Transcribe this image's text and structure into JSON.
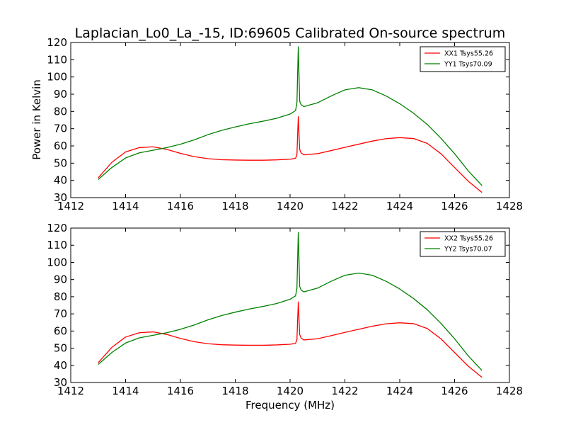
{
  "figure": {
    "title": "Laplacian_Lo0_La_-15, ID:69605 Calibrated On-source spectrum",
    "xlabel": "Frequency (MHz)",
    "ylabel": "Power in Kelvin"
  },
  "chart_data": [
    {
      "type": "line",
      "title": "Laplacian_Lo0_La_-15, ID:69605 Calibrated On-source spectrum",
      "xlabel": "",
      "ylabel": "Power in Kelvin",
      "xlim": [
        1412,
        1428
      ],
      "ylim": [
        30,
        120
      ],
      "xticks": [
        1412,
        1414,
        1416,
        1418,
        1420,
        1422,
        1424,
        1426,
        1428
      ],
      "yticks": [
        30,
        40,
        50,
        60,
        70,
        80,
        90,
        100,
        110,
        120
      ],
      "grid": false,
      "legend": "top-right",
      "series": [
        {
          "name": "XX1 Tsys55.26",
          "color": "#ff0000",
          "x": [
            1413.0,
            1413.5,
            1414.0,
            1414.5,
            1415.0,
            1415.5,
            1416.0,
            1416.5,
            1417.0,
            1417.5,
            1418.0,
            1418.5,
            1419.0,
            1419.5,
            1420.0,
            1420.2,
            1420.25,
            1420.3,
            1420.35,
            1420.4,
            1420.5,
            1421.0,
            1421.5,
            1422.0,
            1422.5,
            1423.0,
            1423.5,
            1424.0,
            1424.5,
            1425.0,
            1425.5,
            1426.0,
            1426.5,
            1427.0
          ],
          "y": [
            41.5,
            50.5,
            56.5,
            59.0,
            59.5,
            58.0,
            55.7,
            53.8,
            52.6,
            52.0,
            51.8,
            51.7,
            51.7,
            51.9,
            52.3,
            52.8,
            55.0,
            77.0,
            58.0,
            56.0,
            54.8,
            55.5,
            57.3,
            59.2,
            61.0,
            62.8,
            64.2,
            64.8,
            64.3,
            61.5,
            55.5,
            47.5,
            39.5,
            33.0
          ]
        },
        {
          "name": "YY1 Tsys70.09",
          "color": "#008000",
          "x": [
            1413.0,
            1413.5,
            1414.0,
            1414.5,
            1415.0,
            1415.5,
            1416.0,
            1416.5,
            1417.0,
            1417.5,
            1418.0,
            1418.5,
            1419.0,
            1419.5,
            1420.0,
            1420.2,
            1420.25,
            1420.3,
            1420.35,
            1420.4,
            1420.5,
            1421.0,
            1421.5,
            1422.0,
            1422.5,
            1423.0,
            1423.5,
            1424.0,
            1424.5,
            1425.0,
            1425.5,
            1426.0,
            1426.5,
            1427.0
          ],
          "y": [
            40.5,
            47.5,
            53.0,
            56.0,
            57.5,
            59.0,
            61.0,
            63.5,
            66.5,
            69.0,
            71.0,
            72.8,
            74.3,
            76.0,
            78.5,
            80.5,
            85.0,
            117.5,
            86.0,
            84.0,
            82.8,
            85.0,
            89.0,
            92.5,
            93.8,
            92.5,
            89.0,
            84.5,
            79.0,
            72.5,
            64.5,
            55.5,
            45.5,
            37.0
          ]
        }
      ]
    },
    {
      "type": "line",
      "title": "",
      "xlabel": "Frequency (MHz)",
      "ylabel": "",
      "xlim": [
        1412,
        1428
      ],
      "ylim": [
        30,
        120
      ],
      "xticks": [
        1412,
        1414,
        1416,
        1418,
        1420,
        1422,
        1424,
        1426,
        1428
      ],
      "yticks": [
        30,
        40,
        50,
        60,
        70,
        80,
        90,
        100,
        110,
        120
      ],
      "grid": false,
      "legend": "top-right",
      "series": [
        {
          "name": "XX2 Tsys55.26",
          "color": "#ff0000",
          "x": [
            1413.0,
            1413.5,
            1414.0,
            1414.5,
            1415.0,
            1415.5,
            1416.0,
            1416.5,
            1417.0,
            1417.5,
            1418.0,
            1418.5,
            1419.0,
            1419.5,
            1420.0,
            1420.2,
            1420.25,
            1420.3,
            1420.35,
            1420.4,
            1420.5,
            1421.0,
            1421.5,
            1422.0,
            1422.5,
            1423.0,
            1423.5,
            1424.0,
            1424.5,
            1425.0,
            1425.5,
            1426.0,
            1426.5,
            1427.0
          ],
          "y": [
            41.5,
            50.5,
            56.5,
            59.0,
            59.5,
            58.0,
            55.7,
            53.8,
            52.6,
            52.0,
            51.8,
            51.7,
            51.7,
            51.9,
            52.3,
            52.8,
            55.0,
            77.0,
            58.0,
            56.0,
            54.8,
            55.5,
            57.3,
            59.2,
            61.0,
            62.8,
            64.2,
            64.8,
            64.3,
            61.5,
            55.5,
            47.5,
            39.5,
            33.0
          ]
        },
        {
          "name": "YY2 Tsys70.07",
          "color": "#008000",
          "x": [
            1413.0,
            1413.5,
            1414.0,
            1414.5,
            1415.0,
            1415.5,
            1416.0,
            1416.5,
            1417.0,
            1417.5,
            1418.0,
            1418.5,
            1419.0,
            1419.5,
            1420.0,
            1420.2,
            1420.25,
            1420.3,
            1420.35,
            1420.4,
            1420.5,
            1421.0,
            1421.5,
            1422.0,
            1422.5,
            1423.0,
            1423.5,
            1424.0,
            1424.5,
            1425.0,
            1425.5,
            1426.0,
            1426.5,
            1427.0
          ],
          "y": [
            40.5,
            47.5,
            53.0,
            56.0,
            57.5,
            59.0,
            61.0,
            63.5,
            66.5,
            69.0,
            71.0,
            72.8,
            74.3,
            76.0,
            78.5,
            80.5,
            85.0,
            117.5,
            86.0,
            84.0,
            82.8,
            85.0,
            89.0,
            92.5,
            93.8,
            92.5,
            89.0,
            84.5,
            79.0,
            72.5,
            64.5,
            55.5,
            45.5,
            37.0
          ]
        }
      ]
    }
  ]
}
